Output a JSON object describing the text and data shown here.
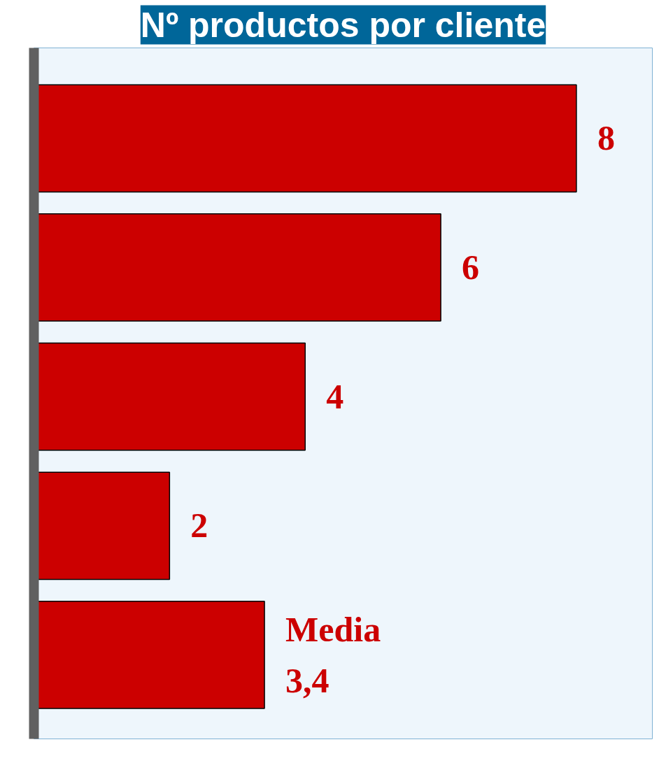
{
  "chart_data": {
    "type": "bar",
    "title": "Nº productos por cliente",
    "orientation": "horizontal",
    "categories": [
      null,
      null,
      null,
      null,
      null
    ],
    "values": [
      8,
      6,
      4,
      2,
      3.4
    ],
    "color": "#cc0000",
    "value_labels": [
      "8",
      "6",
      "4",
      "2",
      "Media\n3,4"
    ],
    "tick_labels": false
  }
}
